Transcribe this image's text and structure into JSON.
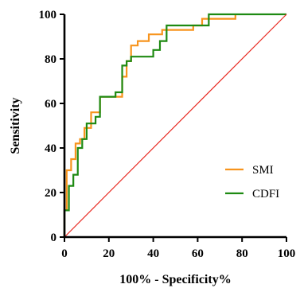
{
  "chart_data": {
    "type": "line",
    "title": "",
    "xlabel": "100% - Specificity%",
    "ylabel": "Sensitivity",
    "xlim": [
      0,
      100
    ],
    "ylim": [
      0,
      100
    ],
    "xticks": [
      "0",
      "20",
      "40",
      "60",
      "80",
      "100"
    ],
    "yticks": [
      "0",
      "20",
      "40",
      "60",
      "80",
      "100"
    ],
    "grid": false,
    "legend_position": "bottom-right",
    "series": [
      {
        "name": "SMI",
        "color": "#f7941d",
        "x": [
          0,
          0,
          1,
          1,
          3,
          3,
          5,
          5,
          7,
          7,
          9,
          9,
          12,
          12,
          16,
          16,
          26,
          26,
          28,
          28,
          30,
          30,
          33,
          33,
          38,
          38,
          44,
          44,
          58,
          58,
          62,
          62,
          77,
          77
        ],
        "y": [
          0,
          12,
          12,
          30,
          30,
          35,
          35,
          42,
          42,
          44,
          44,
          49,
          49,
          56,
          56,
          63,
          63,
          72,
          72,
          79,
          79,
          86,
          86,
          88,
          88,
          91,
          91,
          93,
          93,
          95,
          95,
          98,
          98,
          100
        ]
      },
      {
        "name": "CDFI",
        "color": "#1e8a12",
        "x": [
          0,
          0,
          2,
          2,
          4,
          4,
          6,
          6,
          8,
          8,
          10,
          10,
          14,
          14,
          16,
          16,
          23,
          23,
          26,
          26,
          28,
          28,
          30,
          30,
          33,
          33,
          40,
          40,
          43,
          43,
          46,
          46,
          58,
          58,
          65,
          65,
          100
        ],
        "y": [
          0,
          12,
          12,
          23,
          23,
          28,
          28,
          40,
          40,
          44,
          44,
          51,
          51,
          54,
          54,
          63,
          63,
          65,
          65,
          77,
          77,
          79,
          79,
          81,
          81,
          81,
          81,
          84,
          84,
          88,
          88,
          95,
          95,
          95,
          95,
          100,
          100
        ]
      },
      {
        "name": "",
        "color": "#e8271f",
        "x": [
          0,
          100
        ],
        "y": [
          0,
          100
        ]
      }
    ]
  }
}
